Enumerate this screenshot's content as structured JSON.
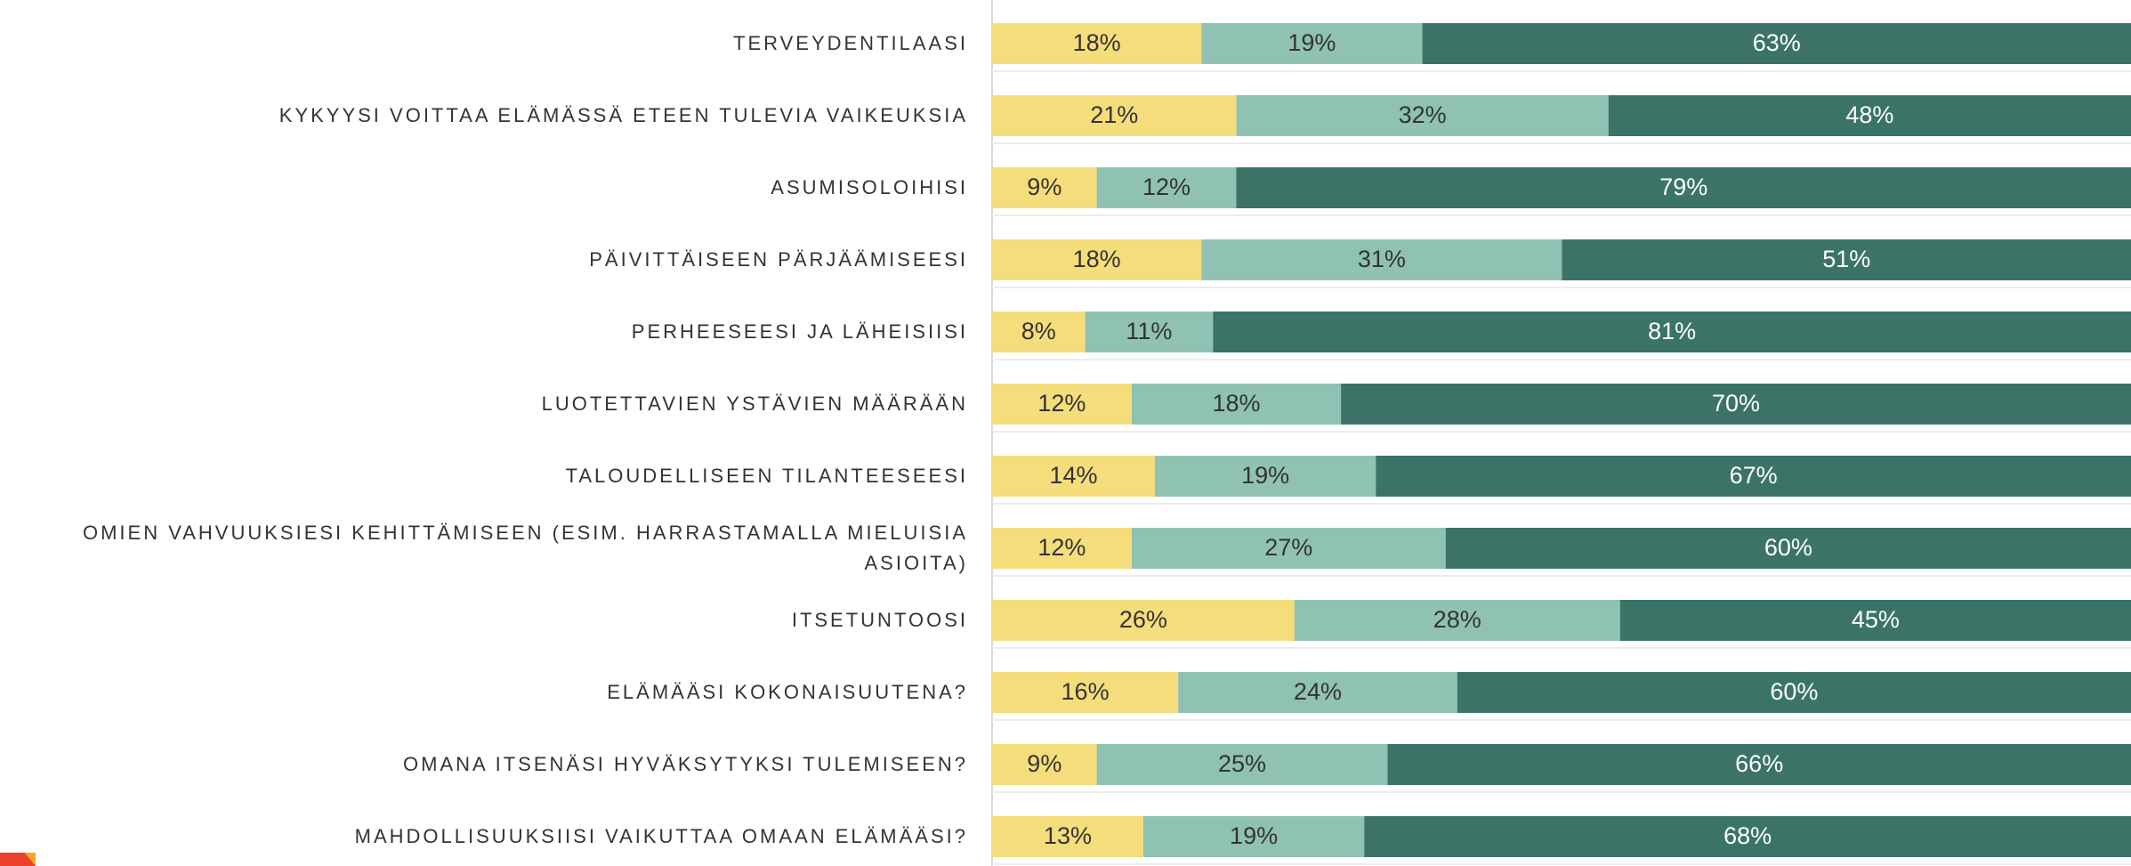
{
  "chart_data": {
    "type": "stacked-bar-horizontal",
    "categories": [
      "TERVEYDENTILAASI",
      "KYKYYSI VOITTAA ELÄMÄSSÄ ETEEN TULEVIA VAIKEUKSIA",
      "ASUMISOLOIHISI",
      "PÄIVITTÄISEEN PÄRJÄÄMISEESI",
      "PERHEESEESI JA LÄHEISIISI",
      "LUOTETTAVIEN YSTÄVIEN MÄÄRÄÄN",
      "TALOUDELLISEEN TILANTEESEESI",
      "OMIEN VAHVUUKSIESI KEHITTÄMISEEN (ESIM. HARRASTAMALLA MIELUISIA ASIOITA)",
      "ITSETUNTOOSI",
      "ELÄMÄÄSI KOKONAISUUTENA?",
      "OMANA ITSENÄSI HYVÄKSYTYKSI TULEMISEEN?",
      "MAHDOLLISUUKSIISI VAIKUTTAA OMAAN ELÄMÄÄSI?"
    ],
    "series": [
      {
        "color": "#f6dd7b",
        "values": [
          18,
          21,
          9,
          18,
          8,
          12,
          14,
          12,
          26,
          16,
          9,
          13
        ],
        "value_labels": [
          "18%",
          "21%",
          "9%",
          "18%",
          "8%",
          "12%",
          "14%",
          "12%",
          "26%",
          "16%",
          "9%",
          "13%"
        ]
      },
      {
        "color": "#8fc2b3",
        "values": [
          19,
          32,
          12,
          31,
          11,
          18,
          19,
          27,
          28,
          24,
          25,
          19
        ],
        "value_labels": [
          "19%",
          "32%",
          "12%",
          "31%",
          "11%",
          "18%",
          "19%",
          "27%",
          "28%",
          "24%",
          "25%",
          "19%"
        ]
      },
      {
        "color": "#3b7466",
        "values": [
          63,
          48,
          79,
          51,
          81,
          70,
          67,
          60,
          45,
          60,
          66,
          68
        ],
        "value_labels": [
          "63%",
          "48%",
          "79%",
          "51%",
          "81%",
          "70%",
          "67%",
          "60%",
          "45%",
          "60%",
          "66%",
          "68%"
        ]
      }
    ],
    "xlim": [
      0,
      100
    ]
  }
}
